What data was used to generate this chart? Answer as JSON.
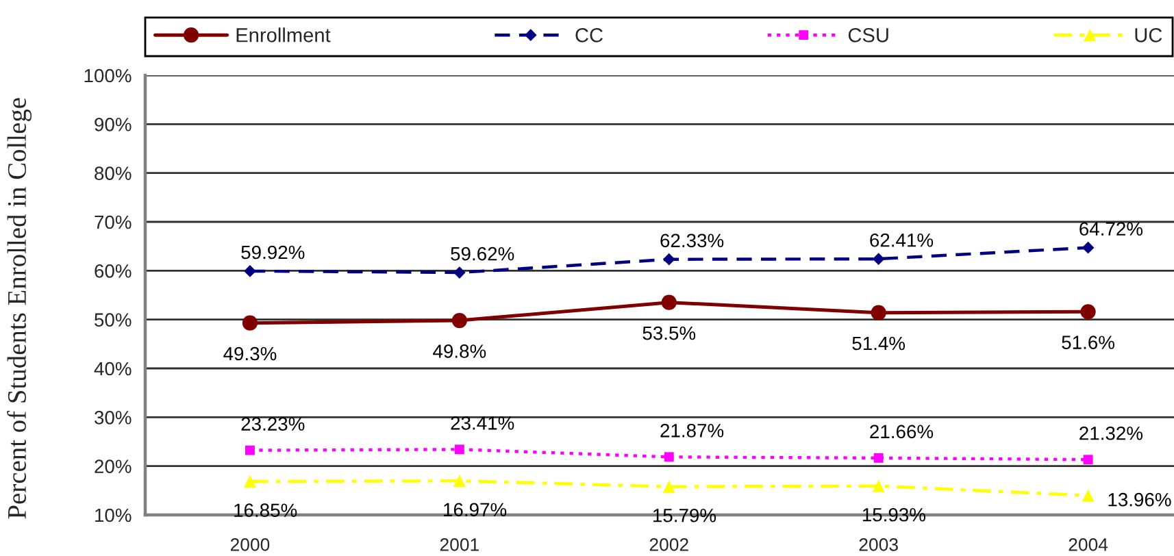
{
  "chart_data": {
    "type": "line",
    "ylabel": "Percent of Students Enrolled in College",
    "categories": [
      "2000",
      "2001",
      "2002",
      "2003",
      "2004"
    ],
    "series": [
      {
        "name": "Enrollment",
        "color": "#800000",
        "marker": "circle",
        "line_style": "solid",
        "values": [
          49.3,
          49.8,
          53.5,
          51.4,
          51.6
        ],
        "value_labels": [
          "49.3%",
          "49.8%",
          "53.5%",
          "51.4%",
          "51.6%"
        ]
      },
      {
        "name": "CC",
        "color": "#000080",
        "marker": "diamond",
        "line_style": "dashed",
        "values": [
          59.92,
          59.62,
          62.33,
          62.41,
          64.72
        ],
        "value_labels": [
          "59.92%",
          "59.62%",
          "62.33%",
          "62.41%",
          "64.72%"
        ]
      },
      {
        "name": "CSU",
        "color": "#ff00ff",
        "marker": "square",
        "line_style": "dotted",
        "values": [
          23.23,
          23.41,
          21.87,
          21.66,
          21.32
        ],
        "value_labels": [
          "23.23%",
          "23.41%",
          "21.87%",
          "21.66%",
          "21.32%"
        ]
      },
      {
        "name": "UC",
        "color": "#ffff00",
        "marker": "triangle",
        "line_style": "dashdot",
        "values": [
          16.85,
          16.97,
          15.79,
          15.93,
          13.96
        ],
        "value_labels": [
          "16.85%",
          "16.97%",
          "15.79%",
          "15.93%",
          "13.96%"
        ]
      }
    ],
    "ylim": [
      10,
      100
    ],
    "yticks": [
      {
        "value": 10,
        "label": "10%"
      },
      {
        "value": 20,
        "label": "20%"
      },
      {
        "value": 30,
        "label": "30%"
      },
      {
        "value": 40,
        "label": "40%"
      },
      {
        "value": 50,
        "label": "50%"
      },
      {
        "value": 60,
        "label": "60%"
      },
      {
        "value": 70,
        "label": "70%"
      },
      {
        "value": 80,
        "label": "80%"
      },
      {
        "value": 90,
        "label": "90%"
      },
      {
        "value": 100,
        "label": "100%"
      }
    ],
    "grid": "y",
    "legend": "top"
  }
}
